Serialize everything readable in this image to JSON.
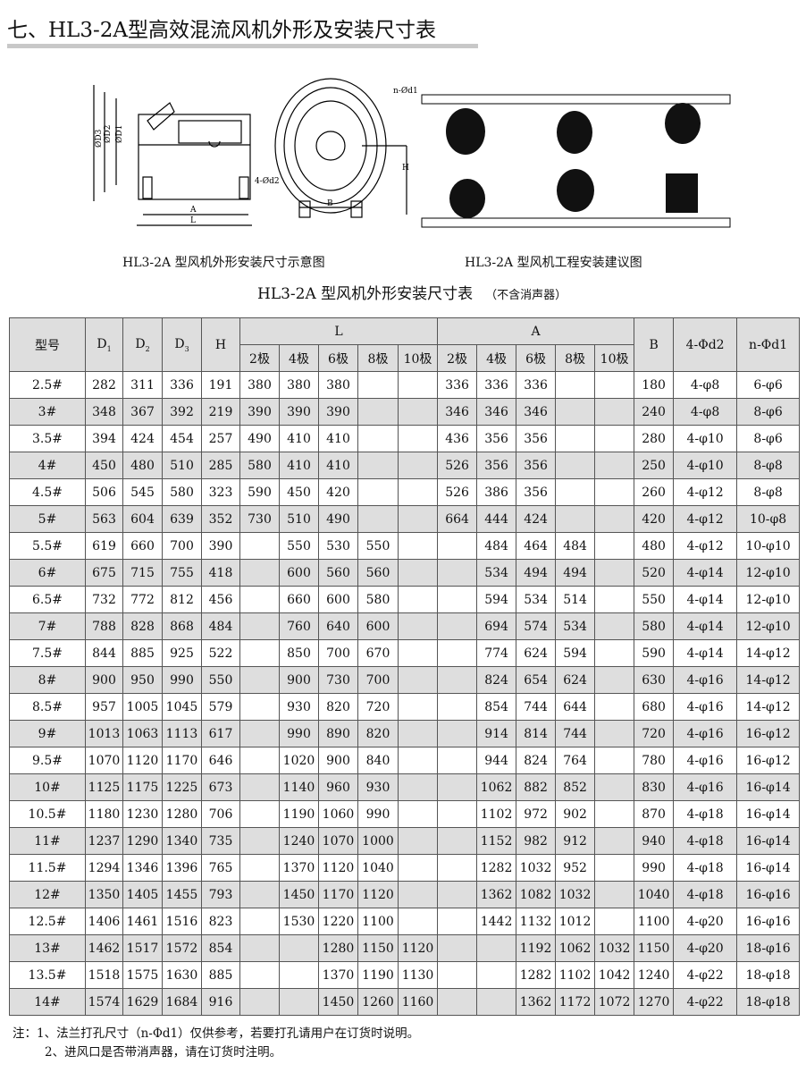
{
  "title": "七、HL3-2A型高效混流风机外形及安装尺寸表",
  "diagram": {
    "labels": {
      "d3": "ØD3",
      "d2": "ØD2",
      "d1": "ØD1",
      "a": "A",
      "l": "L",
      "b": "B",
      "h": "H",
      "nd1": "n-Ød1",
      "d2holes": "4-Ød2"
    },
    "caption_left": "HL3-2A 型风机外形安装尺寸示意图",
    "caption_right": "HL3-2A 型风机工程安装建议图"
  },
  "table": {
    "title": "HL3-2A 型风机外形安装尺寸表",
    "subtitle": "（不含消声器）",
    "headers": {
      "model": "型号",
      "d1": "D",
      "d1_sub": "1",
      "d2": "D",
      "d2_sub": "2",
      "d3": "D",
      "d3_sub": "3",
      "h": "H",
      "l": "L",
      "a": "A",
      "b": "B",
      "c4d2": "4-Φd2",
      "nd1": "n-Φd1",
      "poles": [
        "2极",
        "4极",
        "6极",
        "8极",
        "10极"
      ]
    },
    "rows": [
      [
        "2.5#",
        "282",
        "311",
        "336",
        "191",
        "380",
        "380",
        "380",
        "",
        "",
        "336",
        "336",
        "336",
        "",
        "",
        "180",
        "4-φ8",
        "6-φ6"
      ],
      [
        "3#",
        "348",
        "367",
        "392",
        "219",
        "390",
        "390",
        "390",
        "",
        "",
        "346",
        "346",
        "346",
        "",
        "",
        "240",
        "4-φ8",
        "8-φ6"
      ],
      [
        "3.5#",
        "394",
        "424",
        "454",
        "257",
        "490",
        "410",
        "410",
        "",
        "",
        "436",
        "356",
        "356",
        "",
        "",
        "280",
        "4-φ10",
        "8-φ6"
      ],
      [
        "4#",
        "450",
        "480",
        "510",
        "285",
        "580",
        "410",
        "410",
        "",
        "",
        "526",
        "356",
        "356",
        "",
        "",
        "250",
        "4-φ10",
        "8-φ8"
      ],
      [
        "4.5#",
        "506",
        "545",
        "580",
        "323",
        "590",
        "450",
        "420",
        "",
        "",
        "526",
        "386",
        "356",
        "",
        "",
        "260",
        "4-φ12",
        "8-φ8"
      ],
      [
        "5#",
        "563",
        "604",
        "639",
        "352",
        "730",
        "510",
        "490",
        "",
        "",
        "664",
        "444",
        "424",
        "",
        "",
        "420",
        "4-φ12",
        "10-φ8"
      ],
      [
        "5.5#",
        "619",
        "660",
        "700",
        "390",
        "",
        "550",
        "530",
        "550",
        "",
        "",
        "484",
        "464",
        "484",
        "",
        "480",
        "4-φ12",
        "10-φ10"
      ],
      [
        "6#",
        "675",
        "715",
        "755",
        "418",
        "",
        "600",
        "560",
        "560",
        "",
        "",
        "534",
        "494",
        "494",
        "",
        "520",
        "4-φ14",
        "12-φ10"
      ],
      [
        "6.5#",
        "732",
        "772",
        "812",
        "456",
        "",
        "660",
        "600",
        "580",
        "",
        "",
        "594",
        "534",
        "514",
        "",
        "550",
        "4-φ14",
        "12-φ10"
      ],
      [
        "7#",
        "788",
        "828",
        "868",
        "484",
        "",
        "760",
        "640",
        "600",
        "",
        "",
        "694",
        "574",
        "534",
        "",
        "580",
        "4-φ14",
        "12-φ10"
      ],
      [
        "7.5#",
        "844",
        "885",
        "925",
        "522",
        "",
        "850",
        "700",
        "670",
        "",
        "",
        "774",
        "624",
        "594",
        "",
        "590",
        "4-φ14",
        "14-φ12"
      ],
      [
        "8#",
        "900",
        "950",
        "990",
        "550",
        "",
        "900",
        "730",
        "700",
        "",
        "",
        "824",
        "654",
        "624",
        "",
        "630",
        "4-φ16",
        "14-φ12"
      ],
      [
        "8.5#",
        "957",
        "1005",
        "1045",
        "579",
        "",
        "930",
        "820",
        "720",
        "",
        "",
        "854",
        "744",
        "644",
        "",
        "680",
        "4-φ16",
        "14-φ12"
      ],
      [
        "9#",
        "1013",
        "1063",
        "1113",
        "617",
        "",
        "990",
        "890",
        "820",
        "",
        "",
        "914",
        "814",
        "744",
        "",
        "720",
        "4-φ16",
        "16-φ12"
      ],
      [
        "9.5#",
        "1070",
        "1120",
        "1170",
        "646",
        "",
        "1020",
        "900",
        "840",
        "",
        "",
        "944",
        "824",
        "764",
        "",
        "780",
        "4-φ16",
        "16-φ12"
      ],
      [
        "10#",
        "1125",
        "1175",
        "1225",
        "673",
        "",
        "1140",
        "960",
        "930",
        "",
        "",
        "1062",
        "882",
        "852",
        "",
        "830",
        "4-φ16",
        "16-φ14"
      ],
      [
        "10.5#",
        "1180",
        "1230",
        "1280",
        "706",
        "",
        "1190",
        "1060",
        "990",
        "",
        "",
        "1102",
        "972",
        "902",
        "",
        "870",
        "4-φ18",
        "16-φ14"
      ],
      [
        "11#",
        "1237",
        "1290",
        "1340",
        "735",
        "",
        "1240",
        "1070",
        "1000",
        "",
        "",
        "1152",
        "982",
        "912",
        "",
        "940",
        "4-φ18",
        "16-φ14"
      ],
      [
        "11.5#",
        "1294",
        "1346",
        "1396",
        "765",
        "",
        "1370",
        "1120",
        "1040",
        "",
        "",
        "1282",
        "1032",
        "952",
        "",
        "990",
        "4-φ18",
        "16-φ14"
      ],
      [
        "12#",
        "1350",
        "1405",
        "1455",
        "793",
        "",
        "1450",
        "1170",
        "1120",
        "",
        "",
        "1362",
        "1082",
        "1032",
        "",
        "1040",
        "4-φ18",
        "16-φ16"
      ],
      [
        "12.5#",
        "1406",
        "1461",
        "1516",
        "823",
        "",
        "1530",
        "1220",
        "1100",
        "",
        "",
        "1442",
        "1132",
        "1012",
        "",
        "1100",
        "4-φ20",
        "16-φ16"
      ],
      [
        "13#",
        "1462",
        "1517",
        "1572",
        "854",
        "",
        "",
        "1280",
        "1150",
        "1120",
        "",
        "",
        "1192",
        "1062",
        "1032",
        "1150",
        "4-φ20",
        "18-φ16"
      ],
      [
        "13.5#",
        "1518",
        "1575",
        "1630",
        "885",
        "",
        "",
        "1370",
        "1190",
        "1130",
        "",
        "",
        "1282",
        "1102",
        "1042",
        "1240",
        "4-φ22",
        "18-φ18"
      ],
      [
        "14#",
        "1574",
        "1629",
        "1684",
        "916",
        "",
        "",
        "1450",
        "1260",
        "1160",
        "",
        "",
        "1362",
        "1172",
        "1072",
        "1270",
        "4-φ22",
        "18-φ18"
      ]
    ]
  },
  "notes": [
    "注：1、法兰打孔尺寸（n-Φd1）仅供参考，若要打孔请用户在订货时说明。",
    "2、进风口是否带消声器，请在订货时注明。"
  ]
}
